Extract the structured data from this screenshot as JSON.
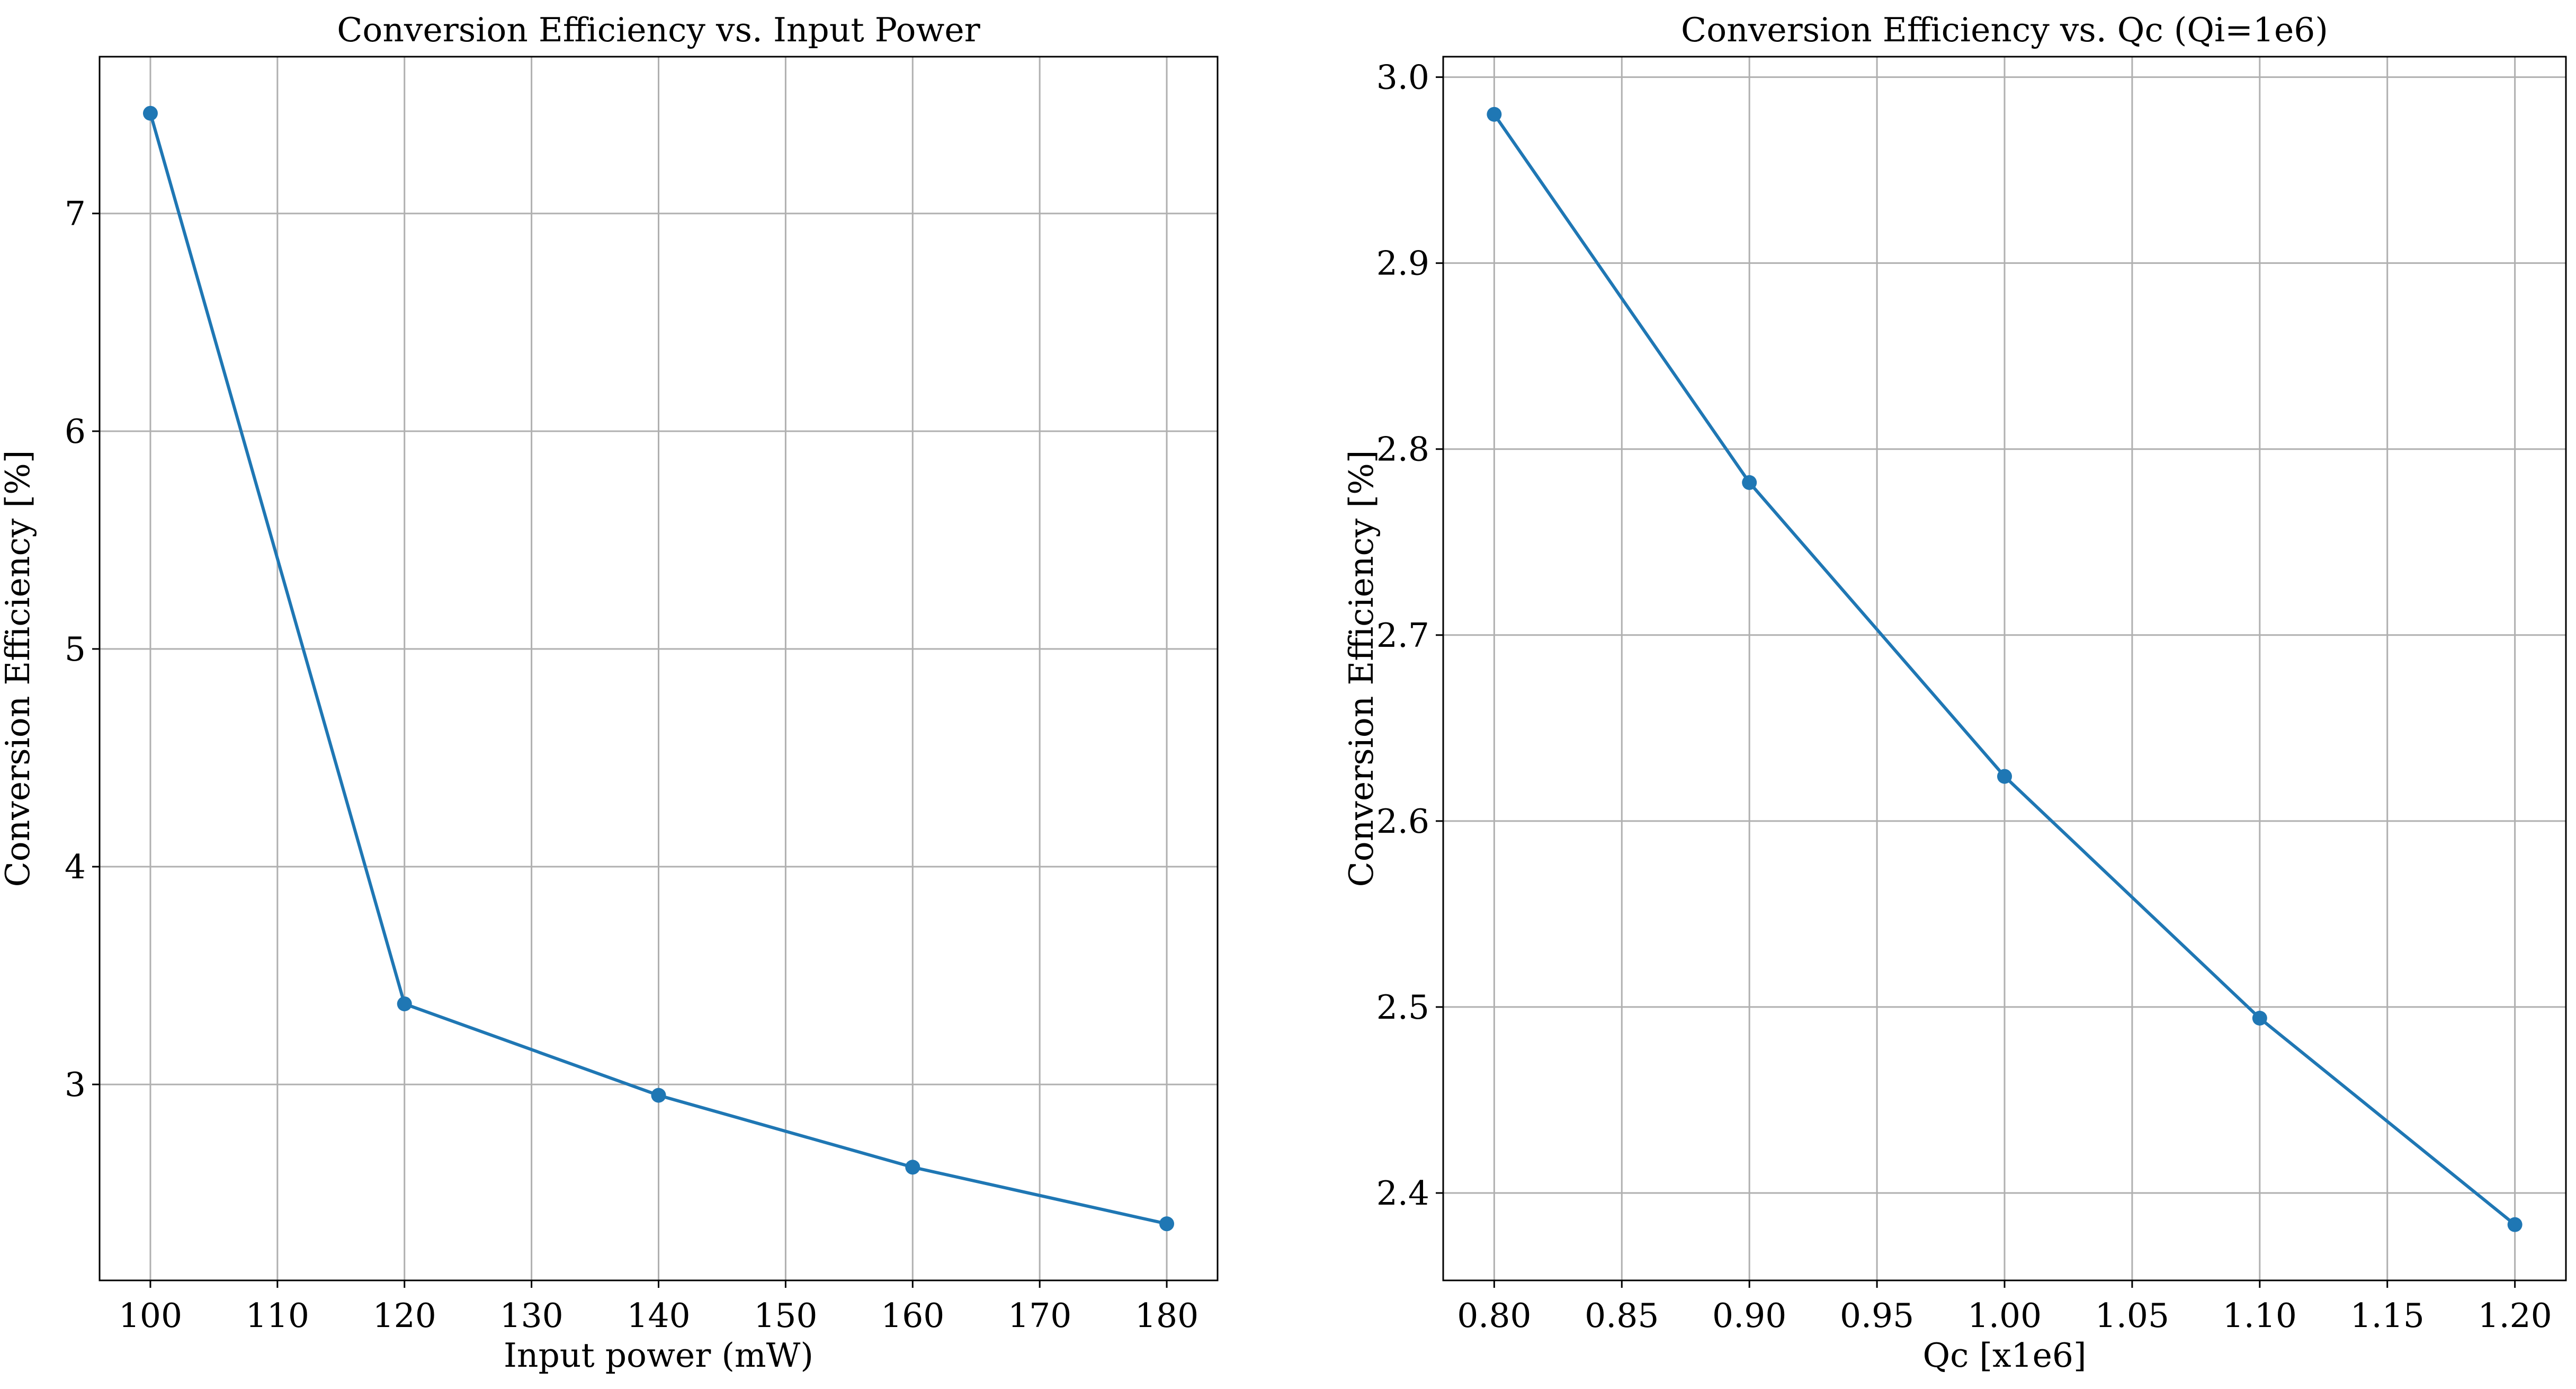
{
  "chart_data": [
    {
      "type": "line",
      "title": "Conversion Efficiency vs. Input Power",
      "xlabel": "Input power (mW)",
      "ylabel": "Conversion Efficiency [%]",
      "x": [
        100,
        120,
        140,
        160,
        180
      ],
      "series": [
        {
          "values": [
            7.46,
            3.37,
            2.95,
            2.62,
            2.36
          ],
          "color": "#1f77b4",
          "marker": "circle"
        }
      ],
      "xlim": [
        96,
        184
      ],
      "ylim": [
        2.1,
        7.72
      ],
      "xticks": [
        100,
        110,
        120,
        130,
        140,
        150,
        160,
        170,
        180
      ],
      "xtick_labels": [
        "100",
        "110",
        "120",
        "130",
        "140",
        "150",
        "160",
        "170",
        "180"
      ],
      "yticks": [
        3,
        4,
        5,
        6,
        7
      ],
      "ytick_labels": [
        "3",
        "4",
        "5",
        "6",
        "7"
      ],
      "grid": true,
      "legend": "none"
    },
    {
      "type": "line",
      "title": "Conversion Efficiency vs. Qc (Qi=1e6)",
      "xlabel": "Qc [x1e6]",
      "ylabel": "Conversion Efficiency [%]",
      "x": [
        0.8,
        0.9,
        1.0,
        1.1,
        1.2
      ],
      "series": [
        {
          "values": [
            2.98,
            2.782,
            2.624,
            2.494,
            2.383
          ],
          "color": "#1f77b4",
          "marker": "circle"
        }
      ],
      "xlim": [
        0.78,
        1.22
      ],
      "ylim": [
        2.353,
        3.011
      ],
      "xticks": [
        0.8,
        0.85,
        0.9,
        0.95,
        1.0,
        1.05,
        1.1,
        1.15,
        1.2
      ],
      "xtick_labels": [
        "0.80",
        "0.85",
        "0.90",
        "0.95",
        "1.00",
        "1.05",
        "1.10",
        "1.15",
        "1.20"
      ],
      "yticks": [
        2.4,
        2.5,
        2.6,
        2.7,
        2.8,
        2.9,
        3.0
      ],
      "ytick_labels": [
        "2.4",
        "2.5",
        "2.6",
        "2.7",
        "2.8",
        "2.9",
        "3.0"
      ],
      "grid": true,
      "legend": "none"
    }
  ]
}
